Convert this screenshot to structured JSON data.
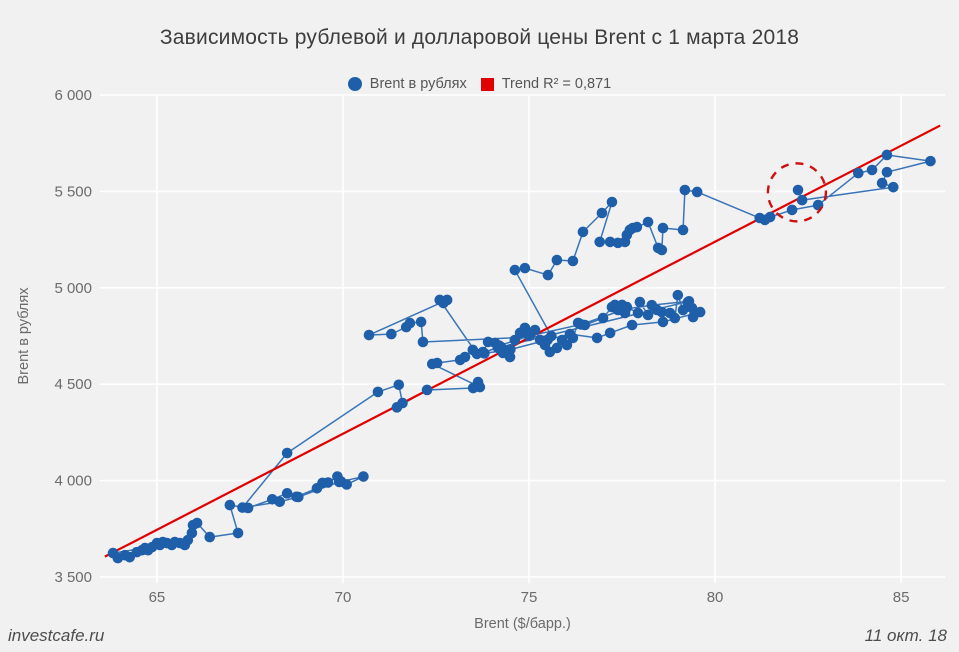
{
  "title": "Зависимость рублевой и долларовой цены Brent с 1 марта 2018",
  "watermark": "investcafe.ru",
  "date_label": "11 окт. 18",
  "legend": {
    "series_label": "Brent в рублях",
    "trend_label": "Trend R² = 0,871"
  },
  "colors": {
    "point": "#1f5fa9",
    "connector_line": "#2e6db3",
    "trend": "#e00000",
    "annotation": "#cc1111",
    "background": "#f1f1f2",
    "grid": "#ffffff",
    "tick_text": "#6b6b6b",
    "title_text": "#3d3d3d"
  },
  "chart_data": {
    "type": "scatter",
    "connected": true,
    "title": "Зависимость рублевой и долларовой цены Brent с 1 марта 2018",
    "xlabel": "Brent ($/барр.)",
    "ylabel": "Brent в рублях",
    "xlim": [
      63.47,
      86.18
    ],
    "ylim": [
      3500,
      6000
    ],
    "x_ticks": [
      65,
      70,
      75,
      80,
      85
    ],
    "x_tick_labels": [
      "65",
      "70",
      "75",
      "80",
      "85"
    ],
    "y_ticks": [
      3500,
      4000,
      4500,
      5000,
      5500,
      6000
    ],
    "y_tick_labels": [
      "3 500",
      "4 000",
      "4 500",
      "5 000",
      "5 500",
      "6 000"
    ],
    "grid": true,
    "legend_position": "top-center",
    "series": [
      {
        "name": "Brent в рублях",
        "points": [
          [
            63.95,
            3598
          ],
          [
            64.27,
            3603
          ],
          [
            64.6,
            3639
          ],
          [
            64.46,
            3629
          ],
          [
            64.14,
            3613
          ],
          [
            63.82,
            3624
          ],
          [
            64.68,
            3650
          ],
          [
            64.87,
            3655
          ],
          [
            65.0,
            3676
          ],
          [
            64.76,
            3639
          ],
          [
            65.08,
            3666
          ],
          [
            65.27,
            3676
          ],
          [
            65.16,
            3681
          ],
          [
            65.4,
            3666
          ],
          [
            65.62,
            3676
          ],
          [
            65.48,
            3681
          ],
          [
            65.75,
            3666
          ],
          [
            65.83,
            3691
          ],
          [
            65.94,
            3728
          ],
          [
            65.97,
            3769
          ],
          [
            66.08,
            3780
          ],
          [
            66.42,
            3707
          ],
          [
            67.18,
            3728
          ],
          [
            66.96,
            3873
          ],
          [
            67.45,
            3858
          ],
          [
            68.1,
            3903
          ],
          [
            68.5,
            3934
          ],
          [
            68.75,
            3916
          ],
          [
            69.3,
            3960
          ],
          [
            69.45,
            3988
          ],
          [
            69.6,
            3990
          ],
          [
            69.85,
            4021
          ],
          [
            69.95,
            3995
          ],
          [
            70.1,
            3980
          ],
          [
            70.55,
            4021
          ],
          [
            69.9,
            3993
          ],
          [
            68.8,
            3915
          ],
          [
            68.3,
            3890
          ],
          [
            67.3,
            3860
          ],
          [
            68.5,
            4143
          ],
          [
            70.94,
            4460
          ],
          [
            71.5,
            4497
          ],
          [
            71.6,
            4402
          ],
          [
            71.45,
            4380
          ],
          [
            72.26,
            4470
          ],
          [
            73.5,
            4480
          ],
          [
            73.63,
            4511
          ],
          [
            73.68,
            4485
          ],
          [
            72.4,
            4605
          ],
          [
            72.53,
            4610
          ],
          [
            73.15,
            4626
          ],
          [
            73.28,
            4641
          ],
          [
            73.49,
            4678
          ],
          [
            73.76,
            4667
          ],
          [
            73.9,
            4719
          ],
          [
            74.09,
            4714
          ],
          [
            74.17,
            4688
          ],
          [
            74.3,
            4662
          ],
          [
            74.49,
            4641
          ],
          [
            74.62,
            4729
          ],
          [
            74.76,
            4766
          ],
          [
            74.89,
            4792
          ],
          [
            75.03,
            4755
          ],
          [
            75.16,
            4781
          ],
          [
            75.3,
            4729
          ],
          [
            75.43,
            4703
          ],
          [
            75.56,
            4667
          ],
          [
            75.75,
            4688
          ],
          [
            75.89,
            4729
          ],
          [
            76.02,
            4703
          ],
          [
            76.18,
            4740
          ],
          [
            76.32,
            4818
          ],
          [
            76.5,
            4807
          ],
          [
            76.99,
            4843
          ],
          [
            77.23,
            4900
          ],
          [
            77.31,
            4911
          ],
          [
            77.39,
            4885
          ],
          [
            77.5,
            4911
          ],
          [
            77.58,
            4869
          ],
          [
            77.63,
            4900
          ],
          [
            77.93,
            4869
          ],
          [
            77.98,
            4926
          ],
          [
            78.2,
            4859
          ],
          [
            78.44,
            4885
          ],
          [
            78.57,
            4874
          ],
          [
            78.79,
            4869
          ],
          [
            78.92,
            4843
          ],
          [
            79.0,
            4962
          ],
          [
            79.14,
            4885
          ],
          [
            79.27,
            4926
          ],
          [
            79.38,
            4895
          ],
          [
            79.41,
            4848
          ],
          [
            79.6,
            4874
          ],
          [
            78.6,
            4823
          ],
          [
            77.77,
            4807
          ],
          [
            77.18,
            4766
          ],
          [
            76.83,
            4740
          ],
          [
            76.1,
            4760
          ],
          [
            75.5,
            4730
          ],
          [
            74.5,
            4680
          ],
          [
            73.8,
            4660
          ],
          [
            74.2,
            4700
          ],
          [
            75.0,
            4750
          ],
          [
            76.4,
            4810
          ],
          [
            77.6,
            4890
          ],
          [
            78.3,
            4910
          ],
          [
            79.3,
            4930
          ],
          [
            74.25,
            4693
          ],
          [
            73.6,
            4657
          ],
          [
            72.6,
            4937
          ],
          [
            72.7,
            4921
          ],
          [
            72.8,
            4937
          ],
          [
            70.7,
            4755
          ],
          [
            71.3,
            4760
          ],
          [
            71.7,
            4796
          ],
          [
            71.8,
            4817
          ],
          [
            72.1,
            4823
          ],
          [
            72.15,
            4719
          ],
          [
            75.6,
            4750
          ],
          [
            74.62,
            5092
          ],
          [
            74.89,
            5102
          ],
          [
            75.51,
            5066
          ],
          [
            75.75,
            5144
          ],
          [
            76.18,
            5139
          ],
          [
            76.45,
            5290
          ],
          [
            76.96,
            5388
          ],
          [
            77.23,
            5445
          ],
          [
            76.9,
            5238
          ],
          [
            77.18,
            5238
          ],
          [
            77.39,
            5233
          ],
          [
            77.58,
            5238
          ],
          [
            77.63,
            5274
          ],
          [
            77.71,
            5300
          ],
          [
            77.79,
            5310
          ],
          [
            77.9,
            5315
          ],
          [
            78.2,
            5341
          ],
          [
            78.47,
            5207
          ],
          [
            78.57,
            5196
          ],
          [
            78.6,
            5310
          ],
          [
            79.14,
            5300
          ],
          [
            79.19,
            5507
          ],
          [
            79.52,
            5497
          ],
          [
            81.2,
            5362
          ],
          [
            81.34,
            5352
          ],
          [
            81.48,
            5367
          ],
          [
            82.07,
            5404
          ],
          [
            82.77,
            5429
          ],
          [
            83.85,
            5595
          ],
          [
            84.22,
            5611
          ],
          [
            84.62,
            5689
          ],
          [
            85.79,
            5657
          ],
          [
            84.62,
            5600
          ],
          [
            84.49,
            5543
          ],
          [
            84.79,
            5522
          ],
          [
            82.34,
            5455
          ],
          [
            82.23,
            5507
          ]
        ]
      }
    ],
    "trend": {
      "label": "Trend R² = 0,871",
      "r2": "0,871",
      "slope": 99.6,
      "intercept": -2729,
      "x_start": 63.6,
      "x_end": 86.05
    },
    "annotation_circle": {
      "x": 82.2,
      "y": 5495,
      "radius_px": 29
    }
  }
}
